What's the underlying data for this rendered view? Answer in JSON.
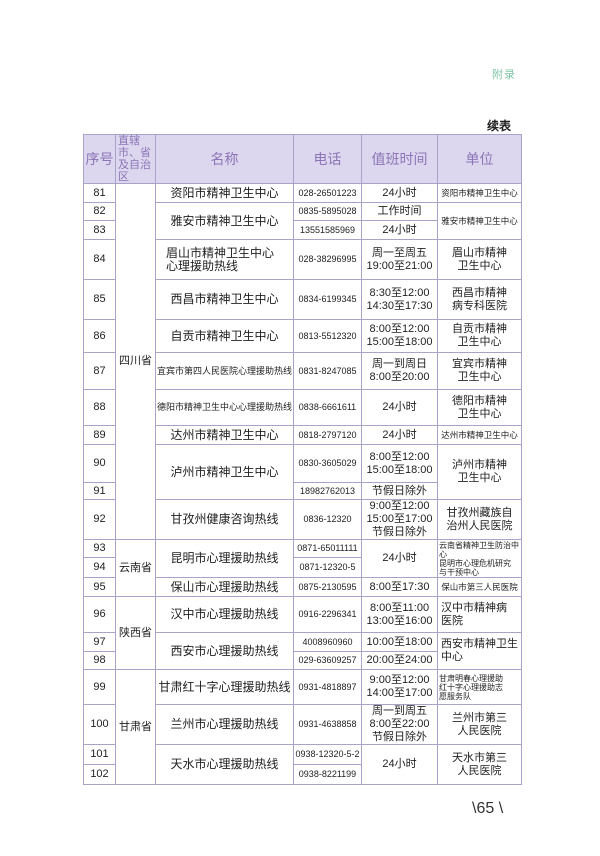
{
  "header": {
    "section": "附录",
    "continued": "续表"
  },
  "table": {
    "columns": [
      "序号",
      "直辖市、省及自治区",
      "名称",
      "电话",
      "值班时间",
      "单位"
    ],
    "provinces": [
      {
        "name": "四川省",
        "entries": [
          {
            "seqs": [
              "81"
            ],
            "name": "资阳市精神卫生中心",
            "phones": [
              "028-26501223"
            ],
            "hours": "24小时",
            "unit": "资阳市精神卫生中心"
          },
          {
            "seqs": [
              "82",
              "83"
            ],
            "name": "雅安市精神卫生中心",
            "phones": [
              "0835-5895028",
              "13551585969"
            ],
            "hours": [
              "工作时间",
              "24小时"
            ],
            "unit": "雅安市精神卫生中心"
          },
          {
            "seqs": [
              "84"
            ],
            "name": "眉山市精神卫生中心\n心理援助热线",
            "phones": [
              "028-38296995"
            ],
            "hours": "周一至周五\n19:00至21:00",
            "unit": "眉山市精神\n卫生中心"
          },
          {
            "seqs": [
              "85"
            ],
            "name": "西昌市精神卫生中心",
            "phones": [
              "0834-6199345"
            ],
            "hours": "8:30至12:00\n14:30至17:30",
            "unit": "西昌市精神\n病专科医院"
          },
          {
            "seqs": [
              "86"
            ],
            "name": "自贡市精神卫生中心",
            "phones": [
              "0813-5512320"
            ],
            "hours": "8:00至12:00\n15:00至18:00",
            "unit": "自贡市精神\n卫生中心"
          },
          {
            "seqs": [
              "87"
            ],
            "name": "宜宾市第四人民医院心理援助热线",
            "phones": [
              "0831-8247085"
            ],
            "hours": "周一到周日\n8:00至20:00",
            "unit": "宜宾市精神\n卫生中心"
          },
          {
            "seqs": [
              "88"
            ],
            "name": "德阳市精神卫生中心心理援助热线",
            "phones": [
              "0838-6661611"
            ],
            "hours": "24小时",
            "unit": "德阳市精神\n卫生中心"
          },
          {
            "seqs": [
              "89"
            ],
            "name": "达州市精神卫生中心",
            "phones": [
              "0818-2797120"
            ],
            "hours": "24小时",
            "unit": "达州市精神卫生中心"
          },
          {
            "seqs": [
              "90",
              "91"
            ],
            "name": "泸州市精神卫生中心",
            "phones": [
              "0830-3605029",
              "18982762013"
            ],
            "hours": [
              "8:00至12:00\n15:00至18:00",
              "节假日除外"
            ],
            "unit": "泸州市精神\n卫生中心"
          },
          {
            "seqs": [
              "92"
            ],
            "name": "甘孜州健康咨询热线",
            "phones": [
              "0836-12320"
            ],
            "hours": "9:00至12:00\n15:00至17:00\n节假日除外",
            "unit": "甘孜州藏族自\n治州人民医院"
          }
        ]
      },
      {
        "name": "云南省",
        "entries": [
          {
            "seqs": [
              "93",
              "94"
            ],
            "name": "昆明市心理援助热线",
            "phones": [
              "0871-65011111",
              "0871-12320-5"
            ],
            "hours": "24小时",
            "unit": "云南省精神卫生防治中心\n昆明市心理危机研究\n与干预中心"
          },
          {
            "seqs": [
              "95"
            ],
            "name": "保山市心理援助热线",
            "phones": [
              "0875-2130595"
            ],
            "hours": "8:00至17:30",
            "unit": "保山市第三人民医院"
          }
        ]
      },
      {
        "name": "陕西省",
        "entries": [
          {
            "seqs": [
              "96"
            ],
            "name": "汉中市心理援助热线",
            "phones": [
              "0916-2296341"
            ],
            "hours": "8:00至11:00\n13:00至16:00",
            "unit": "汉中市精神病\n医院"
          },
          {
            "seqs": [
              "97",
              "98"
            ],
            "name": "西安市心理援助热线",
            "phones": [
              "4008960960",
              "029-63609257"
            ],
            "hours": [
              "10:00至18:00",
              "20:00至24:00"
            ],
            "unit": "西安市精神卫生\n中心"
          }
        ]
      },
      {
        "name": "甘肃省",
        "entries": [
          {
            "seqs": [
              "99"
            ],
            "name": "甘肃红十字心理援助热线",
            "phones": [
              "0931-4818897"
            ],
            "hours": "9:00至12:00\n14:00至17:00",
            "unit": "甘肃明春心理援助\n红十字心理援助志\n愿服务队"
          },
          {
            "seqs": [
              "100"
            ],
            "name": "兰州市心理援助热线",
            "phones": [
              "0931-4638858"
            ],
            "hours": "周一到周五\n8:00至22:00\n节假日除外",
            "unit": "兰州市第三\n人民医院"
          },
          {
            "seqs": [
              "101",
              "102"
            ],
            "name": "天水市心理援助热线",
            "phones": [
              "0938-12320-5-2",
              "0938-8221199"
            ],
            "hours": "24小时",
            "unit": "天水市第三\n人民医院"
          }
        ]
      }
    ]
  },
  "footer": {
    "page_number": "65"
  }
}
